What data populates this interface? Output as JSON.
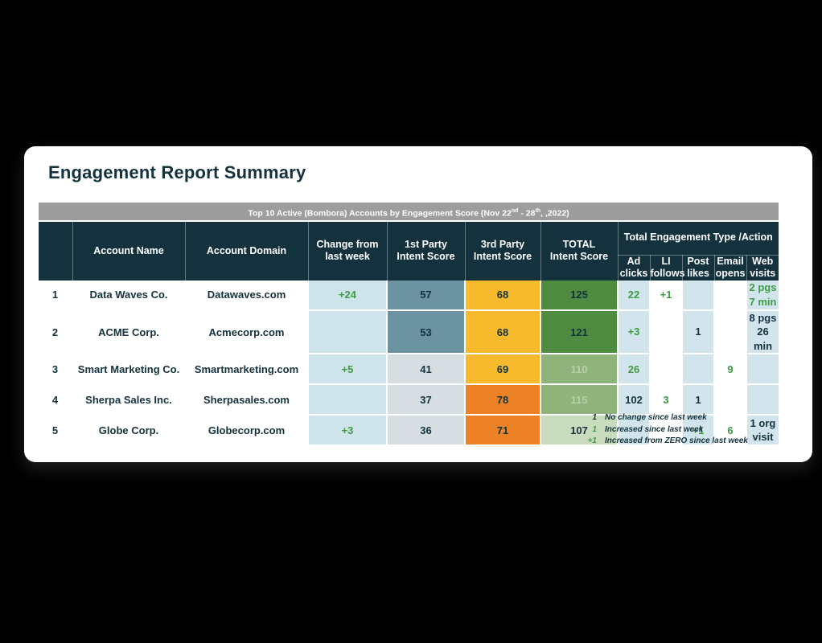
{
  "page": {
    "background": "#000000"
  },
  "card": {
    "title": "Engagement Report Summary"
  },
  "banner": {
    "part1": "Top 10 Active (Bombora) Accounts by Engagement Score (Nov 22",
    "sup1": "nd",
    "part2": " - 28",
    "sup2": "th",
    "part3": ", ,2022)"
  },
  "colors": {
    "navy": "#13323e",
    "green_text": "#3e9b43",
    "sage_text": "#b9d0a9",
    "banner_gray": "#9d9d9d",
    "change_blue": "#cfe3eb",
    "eng_blue": "#d2e5ed",
    "white": "#ffffff",
    "blue_dark": "#6b93a2",
    "gray_blue": "#d6dee2",
    "yellow": "#f7ba2c",
    "orange": "#ed8125",
    "green_dark": "#4f8c42",
    "green_mid": "#8eb37b",
    "green_pale": "#c9dcbd"
  },
  "table": {
    "columns": [
      "",
      "Account Name",
      "Account Domain",
      "Change from\nlast week",
      "1st Party\nIntent Score",
      "3rd Party\nIntent Score",
      "TOTAL\nIntent Score"
    ],
    "engagement_group": {
      "label": "Total Engagement Type /Action",
      "sub_columns": [
        "Ad\nclicks",
        "LI\nfollows",
        "Post\nlikes",
        "Email\nopens",
        "Web\nvisits"
      ],
      "sub_keys": [
        "ad-clicks",
        "li-follows",
        "post-likes",
        "email-opens",
        "web-visits"
      ]
    },
    "rows": [
      {
        "rank": "1",
        "account_name": "Data Waves Co.",
        "account_domain": "Datawaves.com",
        "change": {
          "text": "+24",
          "color": "green_text"
        },
        "first_party": {
          "text": "57",
          "bg": "blue_dark",
          "color": "navy"
        },
        "third_party": {
          "text": "68",
          "bg": "yellow",
          "color": "navy"
        },
        "total": {
          "text": "125",
          "bg": "green_dark",
          "color": "navy"
        },
        "engagement": [
          {
            "text": "22",
            "color": "green_text"
          },
          {
            "text": "+1",
            "color": "green_text"
          },
          {
            "text": ""
          },
          {
            "text": ""
          },
          {
            "text": "2 pgs\n7 min",
            "color": "green_text"
          }
        ]
      },
      {
        "rank": "2",
        "account_name": "ACME Corp.",
        "account_domain": "Acmecorp.com",
        "change": {
          "text": "",
          "color": "green_text"
        },
        "first_party": {
          "text": "53",
          "bg": "blue_dark",
          "color": "navy"
        },
        "third_party": {
          "text": "68",
          "bg": "yellow",
          "color": "navy"
        },
        "total": {
          "text": "121",
          "bg": "green_dark",
          "color": "navy"
        },
        "engagement": [
          {
            "text": "+3",
            "color": "green_text"
          },
          {
            "text": ""
          },
          {
            "text": "1",
            "color": "navy"
          },
          {
            "text": ""
          },
          {
            "text": "8 pgs\n26 min",
            "color": "navy"
          }
        ]
      },
      {
        "rank": "3",
        "account_name": "Smart Marketing Co.",
        "account_domain": "Smartmarketing.com",
        "change": {
          "text": "+5",
          "color": "green_text"
        },
        "first_party": {
          "text": "41",
          "bg": "gray_blue",
          "color": "navy"
        },
        "third_party": {
          "text": "69",
          "bg": "yellow",
          "color": "navy"
        },
        "total": {
          "text": "110",
          "bg": "green_mid",
          "color": "sage_text"
        },
        "engagement": [
          {
            "text": "26",
            "color": "green_text"
          },
          {
            "text": ""
          },
          {
            "text": ""
          },
          {
            "text": "9",
            "color": "green_text"
          },
          {
            "text": ""
          }
        ]
      },
      {
        "rank": "4",
        "account_name": "Sherpa Sales Inc.",
        "account_domain": "Sherpasales.com",
        "change": {
          "text": "",
          "color": "green_text"
        },
        "first_party": {
          "text": "37",
          "bg": "gray_blue",
          "color": "navy"
        },
        "third_party": {
          "text": "78",
          "bg": "orange",
          "color": "navy"
        },
        "total": {
          "text": "115",
          "bg": "green_mid",
          "color": "sage_text"
        },
        "engagement": [
          {
            "text": "102",
            "color": "navy"
          },
          {
            "text": "3",
            "color": "green_text"
          },
          {
            "text": "1",
            "color": "navy"
          },
          {
            "text": ""
          },
          {
            "text": ""
          }
        ]
      },
      {
        "rank": "5",
        "account_name": "Globe Corp.",
        "account_domain": "Globecorp.com",
        "change": {
          "text": "+3",
          "color": "green_text"
        },
        "first_party": {
          "text": "36",
          "bg": "gray_blue",
          "color": "navy"
        },
        "third_party": {
          "text": "71",
          "bg": "orange",
          "color": "navy"
        },
        "total": {
          "text": "107",
          "bg": "green_pale",
          "color": "navy"
        },
        "engagement": [
          {
            "text": ""
          },
          {
            "text": ""
          },
          {
            "text": "+1",
            "color": "green_text"
          },
          {
            "text": "6",
            "color": "green_text"
          },
          {
            "text": "1 org\nvisit",
            "color": "navy"
          }
        ]
      }
    ]
  },
  "legend": {
    "items": [
      {
        "symbol": "1",
        "symbol_color": "navy",
        "text": "No change since last week"
      },
      {
        "symbol": "1",
        "symbol_color": "green_text",
        "text": "Increased since last week"
      },
      {
        "symbol": "+1",
        "symbol_color": "green_text",
        "text": "Increased from ZERO since last week"
      }
    ]
  }
}
